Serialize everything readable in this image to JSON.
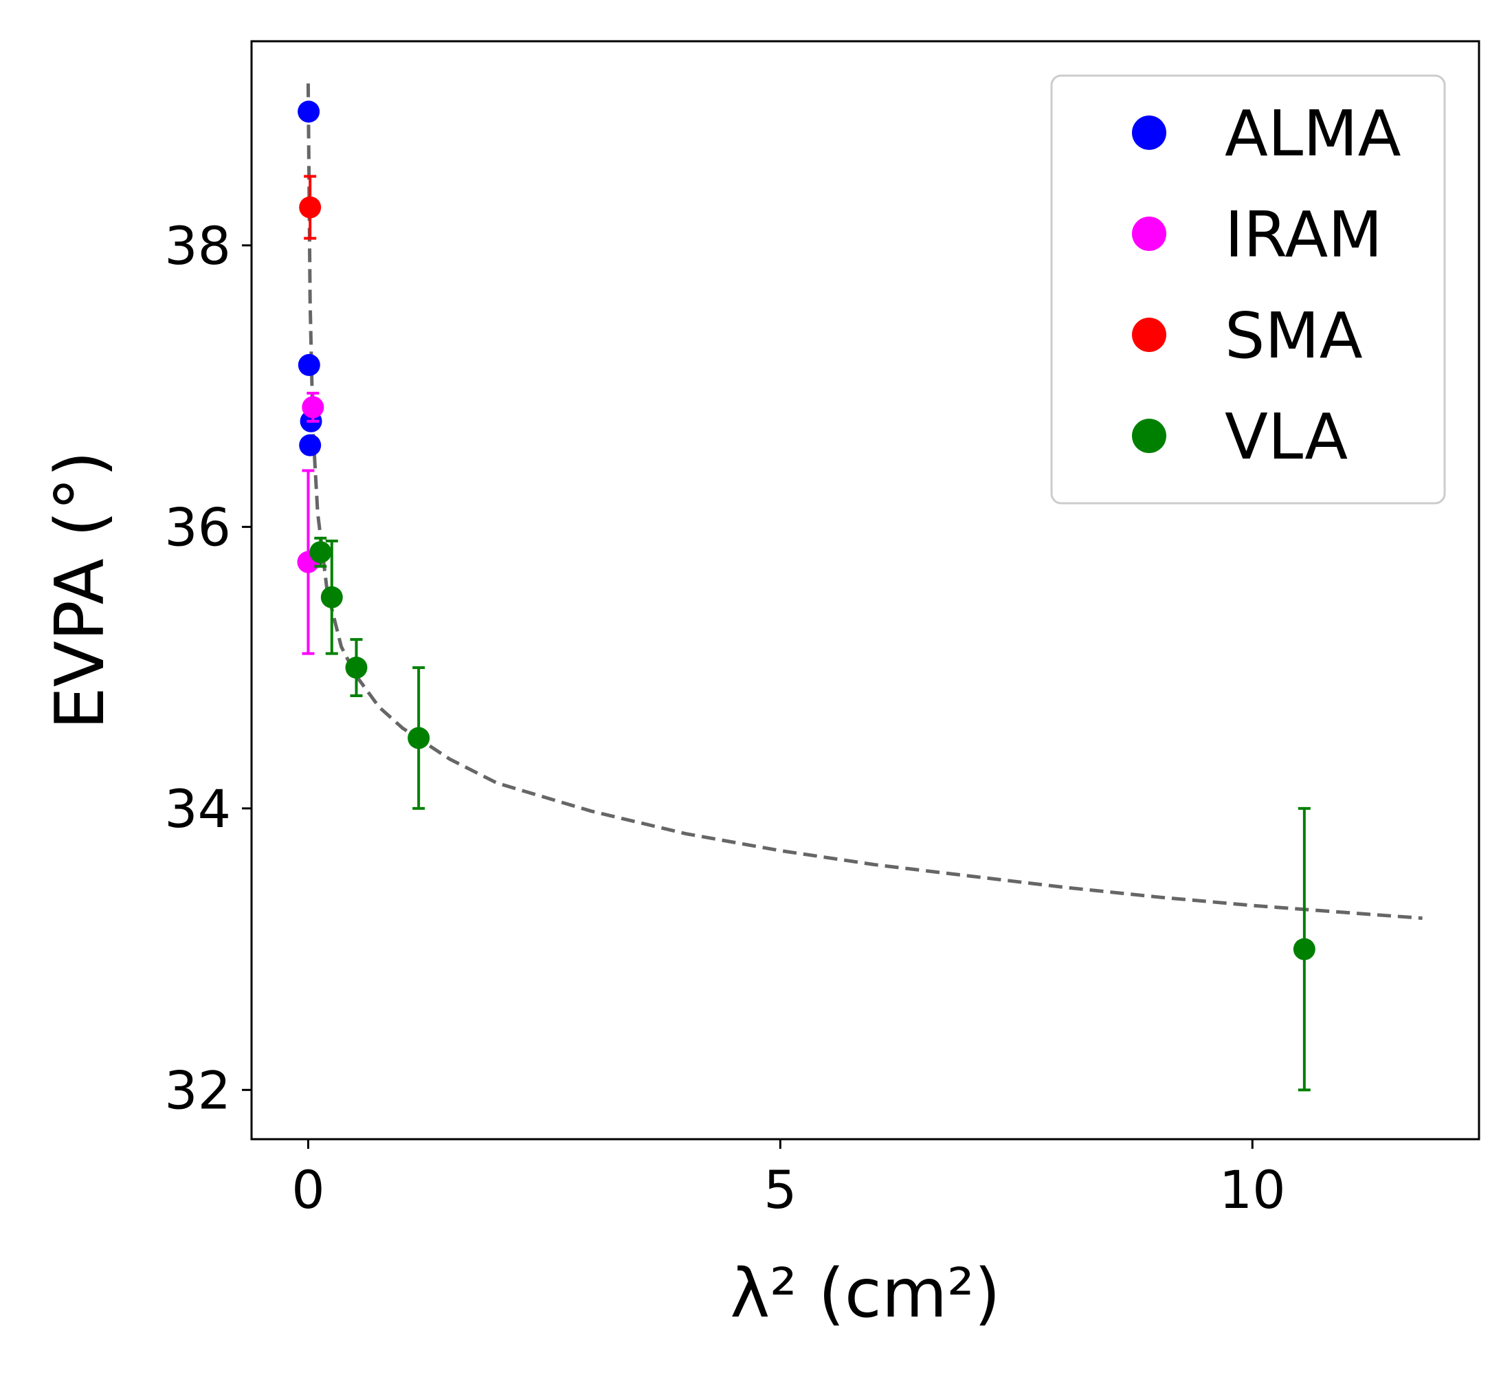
{
  "chart_data": {
    "type": "scatter",
    "title": "",
    "xlabel": "λ² (cm²)",
    "ylabel": "EVPA (°)",
    "xlim": [
      -0.6,
      12.4
    ],
    "ylim": [
      31.65,
      39.45
    ],
    "xticks": [
      0,
      5,
      10
    ],
    "xtick_labels": [
      "0",
      "5",
      "10"
    ],
    "yticks": [
      32,
      34,
      36,
      38
    ],
    "ytick_labels": [
      "32",
      "34",
      "36",
      "38"
    ],
    "grid": false,
    "legend_position": "top-right",
    "series": [
      {
        "name": "ALMA",
        "color": "#0000ff",
        "points": [
          {
            "x": 0.005,
            "y": 38.95,
            "err": 0.05
          },
          {
            "x": 0.01,
            "y": 37.15,
            "err": 0.05
          },
          {
            "x": 0.03,
            "y": 36.75,
            "err": 0.05
          },
          {
            "x": 0.02,
            "y": 36.58,
            "err": 0.05
          }
        ]
      },
      {
        "name": "IRAM",
        "color": "#ff00ff",
        "points": [
          {
            "x": 0.05,
            "y": 36.85,
            "err": 0.1
          },
          {
            "x": 0.0,
            "y": 35.75,
            "err": 0.65
          }
        ]
      },
      {
        "name": "SMA",
        "color": "#ff0000",
        "points": [
          {
            "x": 0.02,
            "y": 38.27,
            "err": 0.22
          }
        ]
      },
      {
        "name": "VLA",
        "color": "#008000",
        "points": [
          {
            "x": 0.13,
            "y": 35.82,
            "err": 0.1
          },
          {
            "x": 0.25,
            "y": 35.5,
            "err": 0.4
          },
          {
            "x": 0.51,
            "y": 35.0,
            "err": 0.2
          },
          {
            "x": 1.17,
            "y": 34.5,
            "err": 0.5
          },
          {
            "x": 10.55,
            "y": 33.0,
            "err": 1.0
          }
        ]
      }
    ],
    "fit_line": {
      "style": "dashed",
      "color": "#666666",
      "points": [
        [
          0.0,
          39.15
        ],
        [
          0.02,
          37.6
        ],
        [
          0.05,
          36.7
        ],
        [
          0.1,
          36.1
        ],
        [
          0.2,
          35.55
        ],
        [
          0.35,
          35.15
        ],
        [
          0.5,
          34.95
        ],
        [
          0.75,
          34.72
        ],
        [
          1.0,
          34.57
        ],
        [
          1.5,
          34.35
        ],
        [
          2.0,
          34.18
        ],
        [
          3.0,
          33.98
        ],
        [
          4.0,
          33.82
        ],
        [
          5.0,
          33.7
        ],
        [
          6.0,
          33.6
        ],
        [
          7.0,
          33.52
        ],
        [
          8.0,
          33.44
        ],
        [
          9.0,
          33.37
        ],
        [
          10.0,
          33.31
        ],
        [
          11.0,
          33.26
        ],
        [
          11.8,
          33.22
        ]
      ]
    }
  }
}
